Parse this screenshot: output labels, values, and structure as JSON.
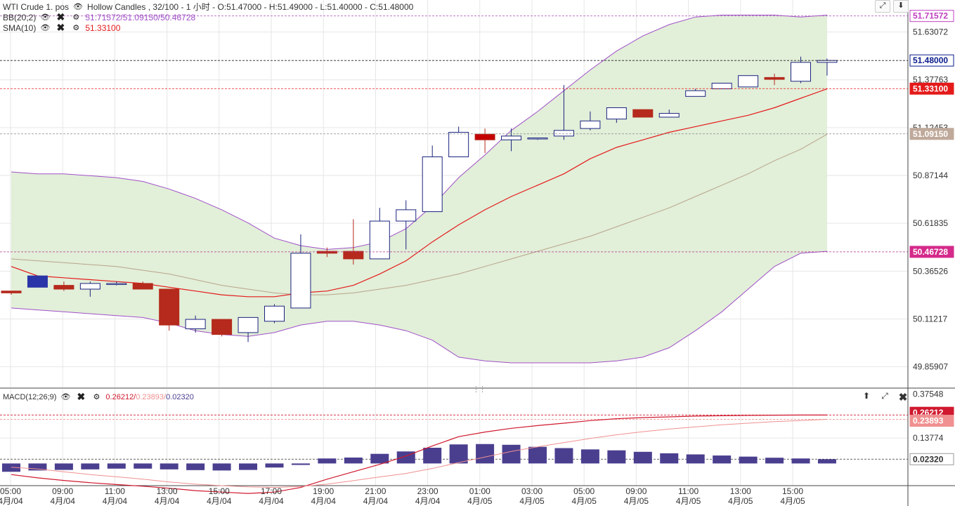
{
  "header": {
    "symbol": "WTI Crude 1. pos",
    "chart_type": "Hollow Candles , 32/100 - 1 小时 - O:51.47000 - H:51.49000 - L:51.40000 - C:51.48000",
    "bb_label": "BB(20;2)",
    "bb_values": "51.71572/51.09150/50.46728",
    "sma_label": "SMA(10)",
    "sma_value": "51.33100",
    "macd_label": "MACD(12;26;9)",
    "macd_v1": "0.26212/",
    "macd_v2": "0.23893/",
    "macd_v3": "0.02320"
  },
  "icons": {
    "visibility": "eye-icon",
    "remove": "close-icon",
    "settings": "gear-icon",
    "expand": "expand-icon",
    "collapse": "arrow-down-icon",
    "move-up": "arrow-up-icon"
  },
  "colors": {
    "bull_candle": "#1a237e",
    "bear_candle": "#b52a1c",
    "sma": "#e41a1a",
    "bb_upper_lower": "#a050c8",
    "bb_middle": "#b8a48a",
    "bb_fill": "#e2efd9",
    "macd_hist": "#4a3f8f",
    "macd_line": "#d0192e",
    "signal_line": "#f09090",
    "price_tag": "#0a1a8c",
    "sma_tag": "#e41a1a",
    "bb_mid_tag": "#bfa99a",
    "bb_bound_tag": "#d42a8a"
  },
  "axis": {
    "price_ticks": [
      "51.63072",
      "51.37763",
      "51.12453",
      "50.87144",
      "50.61835",
      "50.36526",
      "50.11217",
      "49.85907"
    ],
    "macd_ticks": [
      "0.13774",
      "0.37548"
    ],
    "time_labels": [
      "05:00",
      "09:00",
      "11:00",
      "13:00",
      "15:00",
      "17:00",
      "19:00",
      "21:00",
      "23:00",
      "01:00",
      "03:00",
      "05:00",
      "09:00",
      "11:00",
      "13:00",
      "15:00"
    ],
    "date_labels": [
      "4月/04",
      "4月/04",
      "4月/04",
      "4月/04",
      "4月/04",
      "4月/04",
      "4月/04",
      "4月/04",
      "4月/04",
      "4月/05",
      "4月/05",
      "4月/05",
      "4月/05",
      "4月/05",
      "4月/05",
      "4月/05"
    ]
  },
  "tags": {
    "bb_upper": "51.71572",
    "last": "51.48000",
    "sma": "51.33100",
    "bb_mid": "51.09150",
    "bb_lower": "50.46728",
    "macd": "0.26212",
    "signal": "0.23893",
    "hist": "0.02320"
  },
  "chart_data": [
    {
      "type": "candlestick",
      "style": "hollow candles",
      "title": "WTI Crude 1. pos",
      "interval": "1 小时",
      "ylim": [
        49.75,
        51.8
      ],
      "grid": true,
      "candles": [
        {
          "o": 50.26,
          "h": 50.26,
          "l": 50.24,
          "c": 50.25
        },
        {
          "o": 50.34,
          "h": 50.34,
          "l": 50.28,
          "c": 50.28
        },
        {
          "o": 50.29,
          "h": 50.31,
          "l": 50.26,
          "c": 50.27
        },
        {
          "o": 50.27,
          "h": 50.31,
          "l": 50.23,
          "c": 50.3
        },
        {
          "o": 50.3,
          "h": 50.31,
          "l": 50.29,
          "c": 50.3
        },
        {
          "o": 50.3,
          "h": 50.31,
          "l": 50.27,
          "c": 50.27
        },
        {
          "o": 50.27,
          "h": 50.27,
          "l": 50.05,
          "c": 50.08
        },
        {
          "o": 50.06,
          "h": 50.13,
          "l": 50.04,
          "c": 50.11
        },
        {
          "o": 50.11,
          "h": 50.11,
          "l": 50.02,
          "c": 50.03
        },
        {
          "o": 50.04,
          "h": 50.12,
          "l": 49.99,
          "c": 50.12
        },
        {
          "o": 50.1,
          "h": 50.19,
          "l": 50.09,
          "c": 50.18
        },
        {
          "o": 50.17,
          "h": 50.56,
          "l": 50.17,
          "c": 50.46
        },
        {
          "o": 50.47,
          "h": 50.49,
          "l": 50.44,
          "c": 50.46
        },
        {
          "o": 50.47,
          "h": 50.64,
          "l": 50.4,
          "c": 50.43
        },
        {
          "o": 50.43,
          "h": 50.7,
          "l": 50.43,
          "c": 50.63
        },
        {
          "o": 50.63,
          "h": 50.74,
          "l": 50.48,
          "c": 50.69
        },
        {
          "o": 50.68,
          "h": 51.03,
          "l": 50.68,
          "c": 50.97
        },
        {
          "o": 50.97,
          "h": 51.13,
          "l": 50.97,
          "c": 51.1
        },
        {
          "o": 51.09,
          "h": 51.12,
          "l": 50.99,
          "c": 51.06
        },
        {
          "o": 51.06,
          "h": 51.12,
          "l": 51.0,
          "c": 51.08
        },
        {
          "o": 51.07,
          "h": 51.07,
          "l": 51.06,
          "c": 51.07
        },
        {
          "o": 51.08,
          "h": 51.35,
          "l": 51.06,
          "c": 51.11
        },
        {
          "o": 51.12,
          "h": 51.21,
          "l": 51.11,
          "c": 51.16
        },
        {
          "o": 51.17,
          "h": 51.23,
          "l": 51.15,
          "c": 51.23
        },
        {
          "o": 51.22,
          "h": 51.21,
          "l": 51.18,
          "c": 51.18
        },
        {
          "o": 51.18,
          "h": 51.22,
          "l": 51.18,
          "c": 51.2
        },
        {
          "o": 51.29,
          "h": 51.33,
          "l": 51.29,
          "c": 51.32
        },
        {
          "o": 51.33,
          "h": 51.36,
          "l": 51.33,
          "c": 51.36
        },
        {
          "o": 51.34,
          "h": 51.4,
          "l": 51.34,
          "c": 51.4
        },
        {
          "o": 51.39,
          "h": 51.41,
          "l": 51.35,
          "c": 51.38
        },
        {
          "o": 51.37,
          "h": 51.5,
          "l": 51.36,
          "c": 51.47
        },
        {
          "o": 51.47,
          "h": 51.49,
          "l": 51.4,
          "c": 51.48
        }
      ],
      "bollinger": {
        "upper": [
          50.89,
          50.88,
          50.88,
          50.87,
          50.86,
          50.84,
          50.8,
          50.75,
          50.69,
          50.62,
          50.54,
          50.5,
          50.48,
          50.49,
          50.52,
          50.59,
          50.71,
          50.86,
          50.98,
          51.11,
          51.21,
          51.32,
          51.43,
          51.53,
          51.61,
          51.67,
          51.71,
          51.72,
          51.72,
          51.72,
          51.71,
          51.72
        ],
        "middle": [
          50.43,
          50.42,
          50.41,
          50.4,
          50.39,
          50.37,
          50.35,
          50.32,
          50.29,
          50.27,
          50.25,
          50.24,
          50.24,
          50.25,
          50.27,
          50.29,
          50.32,
          50.35,
          50.39,
          50.43,
          50.47,
          50.51,
          50.55,
          50.6,
          50.65,
          50.7,
          50.76,
          50.82,
          50.88,
          50.95,
          51.01,
          51.09
        ],
        "lower": [
          50.17,
          50.16,
          50.15,
          50.14,
          50.13,
          50.12,
          50.09,
          50.05,
          50.03,
          50.02,
          50.04,
          50.08,
          50.1,
          50.1,
          50.08,
          50.05,
          50.0,
          49.91,
          49.89,
          49.88,
          49.88,
          49.88,
          49.88,
          49.89,
          49.91,
          49.96,
          50.05,
          50.15,
          50.27,
          50.39,
          50.46,
          50.47
        ]
      },
      "sma10": [
        50.39,
        50.34,
        50.33,
        50.32,
        50.31,
        50.3,
        50.28,
        50.26,
        50.24,
        50.23,
        50.23,
        50.25,
        50.26,
        50.29,
        50.35,
        50.42,
        50.52,
        50.61,
        50.69,
        50.76,
        50.82,
        50.88,
        50.96,
        51.02,
        51.06,
        51.1,
        51.13,
        51.16,
        51.19,
        51.23,
        51.28,
        51.33
      ]
    },
    {
      "type": "bar",
      "title": "MACD(12;26;9)",
      "ylim": [
        -0.12,
        0.4
      ],
      "grid": true,
      "histogram": [
        -0.045,
        -0.038,
        -0.035,
        -0.032,
        -0.028,
        -0.028,
        -0.032,
        -0.036,
        -0.038,
        -0.035,
        -0.022,
        -0.008,
        0.027,
        0.032,
        0.052,
        0.065,
        0.085,
        0.103,
        0.105,
        0.101,
        0.09,
        0.083,
        0.076,
        0.071,
        0.063,
        0.055,
        0.049,
        0.043,
        0.037,
        0.031,
        0.027,
        0.023
      ],
      "macd": [
        -0.06,
        -0.078,
        -0.092,
        -0.104,
        -0.114,
        -0.123,
        -0.134,
        -0.147,
        -0.155,
        -0.162,
        -0.155,
        -0.13,
        -0.085,
        -0.045,
        -0.005,
        0.04,
        0.095,
        0.145,
        0.17,
        0.19,
        0.205,
        0.218,
        0.232,
        0.242,
        0.248,
        0.252,
        0.256,
        0.258,
        0.26,
        0.261,
        0.262,
        0.262
      ],
      "signal": [
        -0.02,
        -0.03,
        -0.045,
        -0.06,
        -0.072,
        -0.085,
        -0.1,
        -0.112,
        -0.12,
        -0.127,
        -0.13,
        -0.124,
        -0.112,
        -0.093,
        -0.073,
        -0.054,
        -0.027,
        0.005,
        0.035,
        0.065,
        0.09,
        0.113,
        0.135,
        0.155,
        0.172,
        0.186,
        0.198,
        0.209,
        0.218,
        0.226,
        0.232,
        0.239
      ]
    }
  ]
}
